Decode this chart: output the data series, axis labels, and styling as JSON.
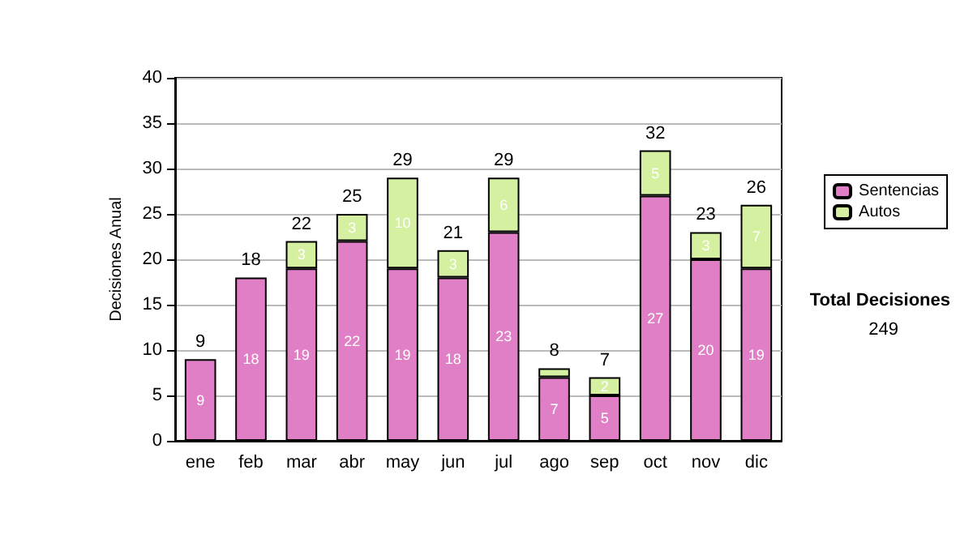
{
  "chart_data": {
    "type": "bar",
    "stacked": true,
    "ylabel": "Decisiones Anual",
    "categories": [
      "ene",
      "feb",
      "mar",
      "abr",
      "may",
      "jun",
      "jul",
      "ago",
      "sep",
      "oct",
      "nov",
      "dic"
    ],
    "series": [
      {
        "name": "Sentencias",
        "color": "#e07fc6",
        "values": [
          9,
          18,
          19,
          22,
          19,
          18,
          23,
          7,
          5,
          27,
          20,
          19
        ],
        "value_labels": [
          "9",
          "18",
          "19",
          "22",
          "19",
          "18",
          "23",
          "7",
          "5",
          "27",
          "20",
          "19"
        ]
      },
      {
        "name": "Autos",
        "color": "#d4f0a0",
        "values": [
          0,
          0,
          3,
          3,
          10,
          3,
          6,
          1,
          2,
          5,
          3,
          7
        ],
        "value_labels": [
          null,
          null,
          "3",
          "3",
          "10",
          "3",
          "6",
          null,
          "2",
          "5",
          "3",
          "7"
        ]
      }
    ],
    "totals": [
      "9",
      "18",
      "22",
      "25",
      "29",
      "21",
      "29",
      "8",
      "7",
      "32",
      "23",
      "26"
    ],
    "ylim": [
      0,
      40
    ],
    "yticks": [
      0,
      5,
      10,
      15,
      20,
      25,
      30,
      35,
      40
    ],
    "grid": "y",
    "legend": "right",
    "annotations": [
      "Total Decisiones",
      "249"
    ]
  }
}
